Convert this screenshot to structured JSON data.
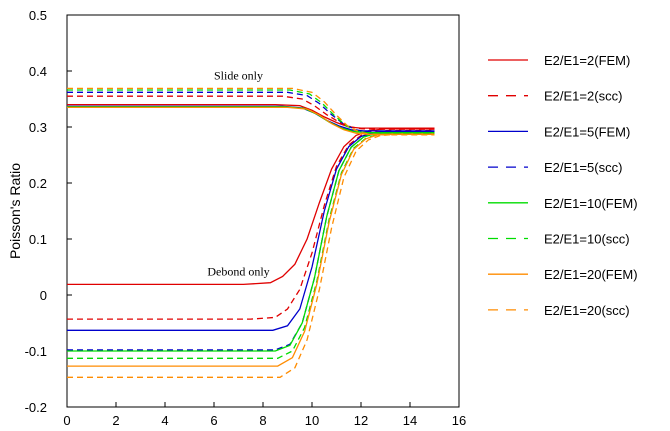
{
  "chart_data": {
    "type": "line",
    "title": "",
    "xlabel": "",
    "ylabel": "Poisson's Ratio",
    "xlim": [
      0,
      16
    ],
    "ylim": [
      -0.2,
      0.5
    ],
    "xticks": [
      0,
      2,
      4,
      6,
      8,
      10,
      12,
      14,
      16
    ],
    "xtick_labels": [
      "0",
      "2",
      "4",
      "6",
      "8",
      "10",
      "12",
      "14",
      "16"
    ],
    "yticks": [
      -0.2,
      -0.1,
      0,
      0.1,
      0.2,
      0.3,
      0.4,
      0.5
    ],
    "ytick_labels": [
      "-0.2",
      "-0.1",
      "0",
      "0.1",
      "0.2",
      "0.3",
      "0.4",
      "0.5"
    ],
    "grid": false,
    "legend_position": "right",
    "annotations": [
      {
        "text": "Slide only",
        "x": 7.0,
        "y": 0.385
      },
      {
        "text": "Debond only",
        "x": 7.0,
        "y": 0.035
      }
    ],
    "series": [
      {
        "name": "E2/E1=2(FEM)",
        "color": "#e00000",
        "dash": "solid",
        "x": [
          0,
          7.2,
          8.3,
          8.8,
          9.3,
          9.8,
          10.3,
          10.8,
          11.3,
          11.8,
          12.3,
          13,
          15
        ],
        "y": [
          0.019,
          0.019,
          0.022,
          0.033,
          0.055,
          0.1,
          0.165,
          0.225,
          0.265,
          0.285,
          0.293,
          0.297,
          0.297
        ],
        "group": "debond"
      },
      {
        "name": "E2/E1=2(scc)",
        "color": "#e00000",
        "dash": "dashed",
        "x": [
          0,
          7.5,
          8.5,
          9.0,
          9.5,
          10.0,
          10.5,
          11.0,
          11.5,
          12.0,
          12.5,
          13.2,
          15
        ],
        "y": [
          -0.043,
          -0.043,
          -0.04,
          -0.025,
          0.01,
          0.075,
          0.16,
          0.23,
          0.268,
          0.285,
          0.292,
          0.294,
          0.294
        ],
        "group": "debond"
      },
      {
        "name": "E2/E1=5(FEM)",
        "color": "#0000cc",
        "dash": "solid",
        "x": [
          0,
          8.4,
          9.0,
          9.5,
          10.0,
          10.5,
          11.0,
          11.5,
          12.0,
          12.5,
          13.2,
          15
        ],
        "y": [
          -0.063,
          -0.063,
          -0.055,
          -0.025,
          0.05,
          0.15,
          0.225,
          0.265,
          0.283,
          0.29,
          0.292,
          0.292
        ],
        "group": "debond"
      },
      {
        "name": "E2/E1=5(scc)",
        "color": "#0000cc",
        "dash": "dashed",
        "x": [
          0,
          8.5,
          9.1,
          9.6,
          10.1,
          10.6,
          11.1,
          11.6,
          12.1,
          12.6,
          13.3,
          15
        ],
        "y": [
          -0.098,
          -0.098,
          -0.088,
          -0.05,
          0.03,
          0.14,
          0.222,
          0.264,
          0.282,
          0.289,
          0.291,
          0.291
        ],
        "group": "debond"
      },
      {
        "name": "E2/E1=10(FEM)",
        "color": "#00dd00",
        "dash": "solid",
        "x": [
          0,
          8.5,
          9.1,
          9.6,
          10.1,
          10.6,
          11.1,
          11.6,
          12.1,
          12.6,
          13.3,
          15
        ],
        "y": [
          -0.1,
          -0.1,
          -0.09,
          -0.05,
          0.03,
          0.14,
          0.222,
          0.264,
          0.282,
          0.289,
          0.29,
          0.29
        ],
        "group": "debond"
      },
      {
        "name": "E2/E1=10(scc)",
        "color": "#00dd00",
        "dash": "dashed",
        "x": [
          0,
          8.6,
          9.2,
          9.7,
          10.2,
          10.7,
          11.2,
          11.7,
          12.2,
          12.7,
          13.4,
          15
        ],
        "y": [
          -0.113,
          -0.113,
          -0.1,
          -0.058,
          0.025,
          0.135,
          0.218,
          0.262,
          0.28,
          0.287,
          0.288,
          0.288
        ],
        "group": "debond"
      },
      {
        "name": "E2/E1=20(FEM)",
        "color": "#ff8c00",
        "dash": "solid",
        "x": [
          0,
          8.6,
          9.2,
          9.7,
          10.2,
          10.7,
          11.2,
          11.7,
          12.2,
          12.7,
          13.4,
          15
        ],
        "y": [
          -0.127,
          -0.127,
          -0.112,
          -0.065,
          0.02,
          0.13,
          0.215,
          0.26,
          0.279,
          0.286,
          0.288,
          0.288
        ],
        "group": "debond"
      },
      {
        "name": "E2/E1=20(scc)",
        "color": "#ff8c00",
        "dash": "dashed",
        "x": [
          0,
          8.7,
          9.3,
          9.8,
          10.3,
          10.8,
          11.3,
          11.8,
          12.3,
          12.8,
          13.5,
          15
        ],
        "y": [
          -0.147,
          -0.147,
          -0.13,
          -0.08,
          0.01,
          0.12,
          0.21,
          0.257,
          0.277,
          0.285,
          0.287,
          0.287
        ],
        "group": "debond"
      },
      {
        "name": "E2/E1=2(FEM)",
        "color": "#e00000",
        "dash": "solid",
        "x": [
          0,
          8.5,
          9.5,
          10.0,
          10.5,
          11.0,
          11.5,
          12.0,
          12.5,
          13.5,
          15
        ],
        "y": [
          0.34,
          0.34,
          0.338,
          0.33,
          0.318,
          0.308,
          0.3,
          0.298,
          0.298,
          0.298,
          0.298
        ],
        "group": "slide",
        "legend": false
      },
      {
        "name": "E2/E1=2(scc)",
        "color": "#e00000",
        "dash": "dashed",
        "x": [
          0,
          8.8,
          9.6,
          10.1,
          10.6,
          11.1,
          11.6,
          12.0,
          12.5,
          13.5,
          15
        ],
        "y": [
          0.355,
          0.355,
          0.35,
          0.338,
          0.322,
          0.309,
          0.3,
          0.297,
          0.296,
          0.296,
          0.296
        ],
        "group": "slide",
        "legend": false
      },
      {
        "name": "E2/E1=5(FEM)",
        "color": "#0000cc",
        "dash": "solid",
        "x": [
          0,
          8.8,
          9.6,
          10.1,
          10.6,
          11.1,
          11.6,
          12.1,
          12.6,
          13.5,
          15
        ],
        "y": [
          0.337,
          0.337,
          0.334,
          0.325,
          0.312,
          0.302,
          0.295,
          0.293,
          0.293,
          0.293,
          0.293
        ],
        "group": "slide",
        "legend": false
      },
      {
        "name": "E2/E1=5(scc)",
        "color": "#0000cc",
        "dash": "dashed",
        "x": [
          0,
          9.0,
          9.8,
          10.3,
          10.8,
          11.3,
          11.8,
          12.2,
          12.7,
          13.5,
          15
        ],
        "y": [
          0.362,
          0.362,
          0.356,
          0.342,
          0.322,
          0.305,
          0.295,
          0.291,
          0.29,
          0.29,
          0.29
        ],
        "group": "slide",
        "legend": false
      },
      {
        "name": "E2/E1=10(FEM)",
        "color": "#00dd00",
        "dash": "solid",
        "x": [
          0,
          8.9,
          9.7,
          10.2,
          10.7,
          11.2,
          11.7,
          12.2,
          12.7,
          13.5,
          15
        ],
        "y": [
          0.336,
          0.336,
          0.333,
          0.323,
          0.309,
          0.298,
          0.292,
          0.29,
          0.29,
          0.29,
          0.29
        ],
        "group": "slide",
        "legend": false
      },
      {
        "name": "E2/E1=10(scc)",
        "color": "#00dd00",
        "dash": "dashed",
        "x": [
          0,
          9.1,
          9.9,
          10.4,
          10.9,
          11.4,
          11.9,
          12.3,
          12.8,
          13.5,
          15
        ],
        "y": [
          0.366,
          0.366,
          0.359,
          0.343,
          0.321,
          0.302,
          0.292,
          0.289,
          0.288,
          0.288,
          0.288
        ],
        "group": "slide",
        "legend": false
      },
      {
        "name": "E2/E1=20(FEM)",
        "color": "#ff8c00",
        "dash": "solid",
        "x": [
          0,
          9.0,
          9.8,
          10.3,
          10.8,
          11.3,
          11.8,
          12.3,
          12.8,
          13.5,
          15
        ],
        "y": [
          0.335,
          0.335,
          0.332,
          0.321,
          0.306,
          0.295,
          0.289,
          0.287,
          0.287,
          0.287,
          0.287
        ],
        "group": "slide",
        "legend": false
      },
      {
        "name": "E2/E1=20(scc)",
        "color": "#ff8c00",
        "dash": "dashed",
        "x": [
          0,
          9.2,
          10.0,
          10.5,
          11.0,
          11.5,
          12.0,
          12.4,
          12.9,
          13.5,
          15
        ],
        "y": [
          0.369,
          0.369,
          0.362,
          0.345,
          0.321,
          0.3,
          0.29,
          0.287,
          0.286,
          0.286,
          0.286
        ],
        "group": "slide",
        "legend": false
      }
    ]
  }
}
